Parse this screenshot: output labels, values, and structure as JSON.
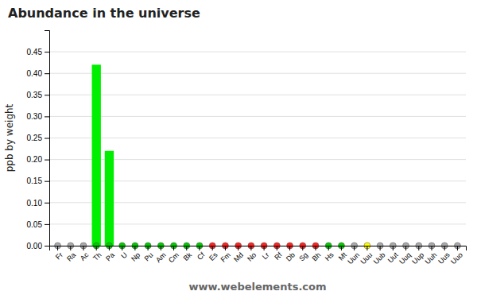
{
  "chart_data": {
    "type": "bar",
    "title": "Abundance in the universe",
    "y_label": "ppb by weight",
    "annotations": [
      "www.webelements.com"
    ],
    "categories": [
      "Fr",
      "Ra",
      "Ac",
      "Th",
      "Pa",
      "U",
      "Np",
      "Pu",
      "Am",
      "Cm",
      "Bk",
      "Cf",
      "Es",
      "Fm",
      "Md",
      "No",
      "Lr",
      "Rf",
      "Db",
      "Sg",
      "Bh",
      "Hs",
      "Mt",
      "Uun",
      "Uuu",
      "Uub",
      "Uut",
      "Uuq",
      "Uup",
      "Uuh",
      "Uus",
      "Uuo"
    ],
    "series": [
      {
        "type": "bar",
        "color": "#00ee00",
        "values": [
          0.0,
          0.0,
          0.0,
          0.42,
          0.22,
          0.0,
          0.0,
          0.0,
          0.0,
          0.0,
          0.0,
          0.0,
          0.0,
          0.0,
          0.0,
          0.0,
          0.0,
          0.0,
          0.0,
          0.0,
          0.0,
          0.0,
          0.0,
          0.0,
          0.0,
          0.0,
          0.0,
          0.0,
          0.0,
          0.0,
          0.0,
          0.0
        ]
      },
      {
        "type": "scatter",
        "marker": "circle",
        "colors": [
          "#aaaaaa",
          "#aaaaaa",
          "#aaaaaa",
          "#00cc00",
          "#00cc00",
          "#00cc00",
          "#00cc00",
          "#00cc00",
          "#00cc00",
          "#00cc00",
          "#00cc00",
          "#00cc00",
          "#ff2222",
          "#ff2222",
          "#ff2222",
          "#ff2222",
          "#ff2222",
          "#ff2222",
          "#ff2222",
          "#ff2222",
          "#ff2222",
          "#00cc00",
          "#00cc00",
          "#aaaaaa",
          "#ffff00",
          "#aaaaaa",
          "#aaaaaa",
          "#aaaaaa",
          "#aaaaaa",
          "#aaaaaa",
          "#aaaaaa",
          "#aaaaaa"
        ],
        "values": [
          0,
          0,
          0,
          0,
          0,
          0,
          0,
          0,
          0,
          0,
          0,
          0,
          0,
          0,
          0,
          0,
          0,
          0,
          0,
          0,
          0,
          0,
          0,
          0,
          0,
          0,
          0,
          0,
          0,
          0,
          0,
          0
        ]
      }
    ],
    "ylim": [
      0,
      0.5
    ],
    "yticks": [
      {
        "value": 0,
        "label": "0.00"
      },
      {
        "value": 0.05,
        "label": "0.05"
      },
      {
        "value": 0.1,
        "label": "0.10"
      },
      {
        "value": 0.15,
        "label": "0.15"
      },
      {
        "value": 0.2,
        "label": "0.20"
      },
      {
        "value": 0.25,
        "label": "0.25"
      },
      {
        "value": 0.3,
        "label": "0.30"
      },
      {
        "value": 0.35,
        "label": "0.35"
      },
      {
        "value": 0.4,
        "label": "0.40"
      },
      {
        "value": 0.45,
        "label": "0.45"
      }
    ],
    "grid": true
  }
}
